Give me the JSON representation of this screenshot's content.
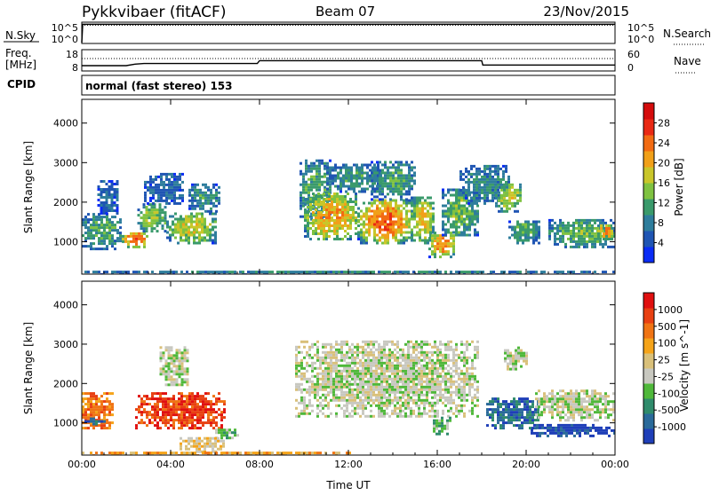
{
  "header": {
    "station": "Pykkvibaer (fitACF)",
    "beam": "Beam 07",
    "date": "23/Nov/2015"
  },
  "panels": {
    "nsky": {
      "label": "N.Sky",
      "ticks_left": [
        "10^5",
        "10^0"
      ],
      "right_label": "N.Search",
      "ticks_right": [
        "10^5",
        "10^0"
      ]
    },
    "freq": {
      "label_line1": "Freq.",
      "label_line2": "[MHz]",
      "ticks_left": [
        "18",
        "8"
      ],
      "right_label": "Nave",
      "ticks_right": [
        "60",
        "0"
      ]
    },
    "cpid": {
      "label": "CPID",
      "text": "normal (fast stereo) 153"
    }
  },
  "chart_data": [
    {
      "type": "line",
      "name": "N.Sky / N.Search",
      "x_range": [
        "00:00",
        "24:00"
      ],
      "y_scale": "log",
      "ylim": [
        1,
        100000
      ],
      "series": [
        {
          "name": "N.Sky",
          "style": "solid",
          "baseline": 50000,
          "spikes_hours": [
            3.6,
            5.2,
            8.4,
            9.0,
            10.6,
            14.1,
            14.3,
            14.5,
            14.6,
            15.0,
            15.1,
            15.3,
            15.5,
            15.6,
            16.2,
            19.9
          ]
        },
        {
          "name": "N.Search",
          "style": "dotted",
          "baseline": 50000
        }
      ]
    },
    {
      "type": "line",
      "name": "Freq / Nave",
      "x_range": [
        "00:00",
        "24:00"
      ],
      "ylim_left": [
        8,
        18
      ],
      "ylim_right": [
        0,
        60
      ],
      "series": [
        {
          "name": "Freq",
          "style": "solid",
          "points": [
            [
              0,
              10.5
            ],
            [
              2.0,
              10.5
            ],
            [
              2.4,
              11.2
            ],
            [
              2.8,
              11.5
            ],
            [
              7.9,
              11.5
            ],
            [
              8.0,
              12.8
            ],
            [
              18.0,
              12.8
            ],
            [
              18.05,
              10.8
            ],
            [
              24,
              10.8
            ]
          ]
        },
        {
          "name": "Nave",
          "style": "dotted",
          "points": [
            [
              0,
              35
            ],
            [
              24,
              35
            ]
          ]
        }
      ]
    },
    {
      "type": "heatmap",
      "name": "Power",
      "xlabel": "Time UT",
      "ylabel": "Slant Range [km]",
      "x_ticks": [
        "00:00",
        "04:00",
        "08:00",
        "12:00",
        "16:00",
        "20:00",
        "00:00"
      ],
      "x_range_hours": [
        0,
        24
      ],
      "y_ticks": [
        1000,
        2000,
        3000,
        4000
      ],
      "ylim": [
        180,
        4600
      ],
      "colorbar": {
        "label": "Power [dB]",
        "ticks": [
          4,
          8,
          12,
          16,
          20,
          24,
          28
        ],
        "range": [
          0,
          32
        ],
        "colors": [
          "#0a2cf5",
          "#1f55b3",
          "#2e7d9c",
          "#3a9a6b",
          "#7fc241",
          "#c9c62a",
          "#f1a019",
          "#f26b13",
          "#e92914",
          "#d40c0c"
        ]
      },
      "regions": [
        {
          "t0": 0.0,
          "t1": 1.8,
          "r0": 850,
          "r1": 1750,
          "level": 12
        },
        {
          "t0": 0.7,
          "t1": 1.6,
          "r0": 1750,
          "r1": 2600,
          "level": 6
        },
        {
          "t0": 1.8,
          "t1": 3.0,
          "r0": 900,
          "r1": 1300,
          "level": 26
        },
        {
          "t0": 2.5,
          "t1": 3.8,
          "r0": 1300,
          "r1": 2000,
          "level": 16
        },
        {
          "t0": 2.8,
          "t1": 4.6,
          "r0": 2000,
          "r1": 2800,
          "level": 6
        },
        {
          "t0": 3.8,
          "t1": 6.0,
          "r0": 1000,
          "r1": 1800,
          "level": 18
        },
        {
          "t0": 4.8,
          "t1": 6.2,
          "r0": 1800,
          "r1": 2500,
          "level": 10
        },
        {
          "t0": 0.0,
          "t1": 24.0,
          "r0": 200,
          "r1": 330,
          "level": 8
        },
        {
          "t0": 9.8,
          "t1": 11.2,
          "r0": 1600,
          "r1": 3100,
          "level": 12
        },
        {
          "t0": 10.0,
          "t1": 12.4,
          "r0": 1100,
          "r1": 2300,
          "level": 22
        },
        {
          "t0": 11.0,
          "t1": 13.4,
          "r0": 2300,
          "r1": 3000,
          "level": 10
        },
        {
          "t0": 12.4,
          "t1": 14.8,
          "r0": 1000,
          "r1": 2100,
          "level": 26
        },
        {
          "t0": 13.0,
          "t1": 15.0,
          "r0": 2100,
          "r1": 3100,
          "level": 11
        },
        {
          "t0": 14.8,
          "t1": 15.8,
          "r0": 1000,
          "r1": 2200,
          "level": 20
        },
        {
          "t0": 15.6,
          "t1": 16.8,
          "r0": 650,
          "r1": 1300,
          "level": 24
        },
        {
          "t0": 16.2,
          "t1": 17.8,
          "r0": 1200,
          "r1": 2400,
          "level": 14
        },
        {
          "t0": 17.0,
          "t1": 19.2,
          "r0": 2000,
          "r1": 3000,
          "level": 9
        },
        {
          "t0": 18.6,
          "t1": 19.8,
          "r0": 1800,
          "r1": 2500,
          "level": 18
        },
        {
          "t0": 19.2,
          "t1": 20.6,
          "r0": 1000,
          "r1": 1600,
          "level": 12
        },
        {
          "t0": 21.0,
          "t1": 24.0,
          "r0": 900,
          "r1": 1600,
          "level": 14
        },
        {
          "t0": 23.2,
          "t1": 24.0,
          "r0": 1100,
          "r1": 1500,
          "level": 24
        }
      ]
    },
    {
      "type": "heatmap",
      "name": "Velocity",
      "xlabel": "Time UT",
      "ylabel": "Slant Range [km]",
      "x_ticks": [
        "00:00",
        "04:00",
        "08:00",
        "12:00",
        "16:00",
        "20:00",
        "00:00"
      ],
      "x_range_hours": [
        0,
        24
      ],
      "y_ticks": [
        1000,
        2000,
        3000,
        4000
      ],
      "ylim": [
        180,
        4600
      ],
      "colorbar": {
        "label": "Velocity [m s^-1]",
        "ticks": [
          "1000",
          "500",
          "100",
          "25",
          "-25",
          "-100",
          "-500",
          "-1000"
        ],
        "colors": [
          "#1f3fb8",
          "#2a6a9a",
          "#2f8b6b",
          "#4fb83a",
          "#c8c8c0",
          "#d9c07a",
          "#f5a41a",
          "#f07414",
          "#e84012",
          "#e01010"
        ]
      },
      "regions": [
        {
          "t0": 0.0,
          "t1": 1.4,
          "r0": 900,
          "r1": 1800,
          "level": 7
        },
        {
          "t0": 0.0,
          "t1": 1.0,
          "r0": 1000,
          "r1": 1200,
          "level": 1
        },
        {
          "t0": 2.4,
          "t1": 6.4,
          "r0": 900,
          "r1": 1800,
          "level": 8
        },
        {
          "t0": 3.5,
          "t1": 4.8,
          "r0": 2000,
          "r1": 3000,
          "level": 4
        },
        {
          "t0": 6.0,
          "t1": 7.0,
          "r0": 650,
          "r1": 900,
          "level": 3
        },
        {
          "t0": 4.4,
          "t1": 6.4,
          "r0": 300,
          "r1": 700,
          "level": 5
        },
        {
          "t0": 0.0,
          "t1": 12.0,
          "r0": 200,
          "r1": 330,
          "level": 6
        },
        {
          "t0": 9.6,
          "t1": 17.8,
          "r0": 1200,
          "r1": 3100,
          "level": 4
        },
        {
          "t0": 15.8,
          "t1": 16.6,
          "r0": 750,
          "r1": 1200,
          "level": 3
        },
        {
          "t0": 18.2,
          "t1": 20.6,
          "r0": 900,
          "r1": 1700,
          "level": 1
        },
        {
          "t0": 20.4,
          "t1": 24.0,
          "r0": 1100,
          "r1": 1900,
          "level": 4
        },
        {
          "t0": 20.2,
          "t1": 24.0,
          "r0": 700,
          "r1": 1000,
          "level": 0
        },
        {
          "t0": 19.0,
          "t1": 20.0,
          "r0": 2400,
          "r1": 3000,
          "level": 4
        }
      ]
    }
  ]
}
